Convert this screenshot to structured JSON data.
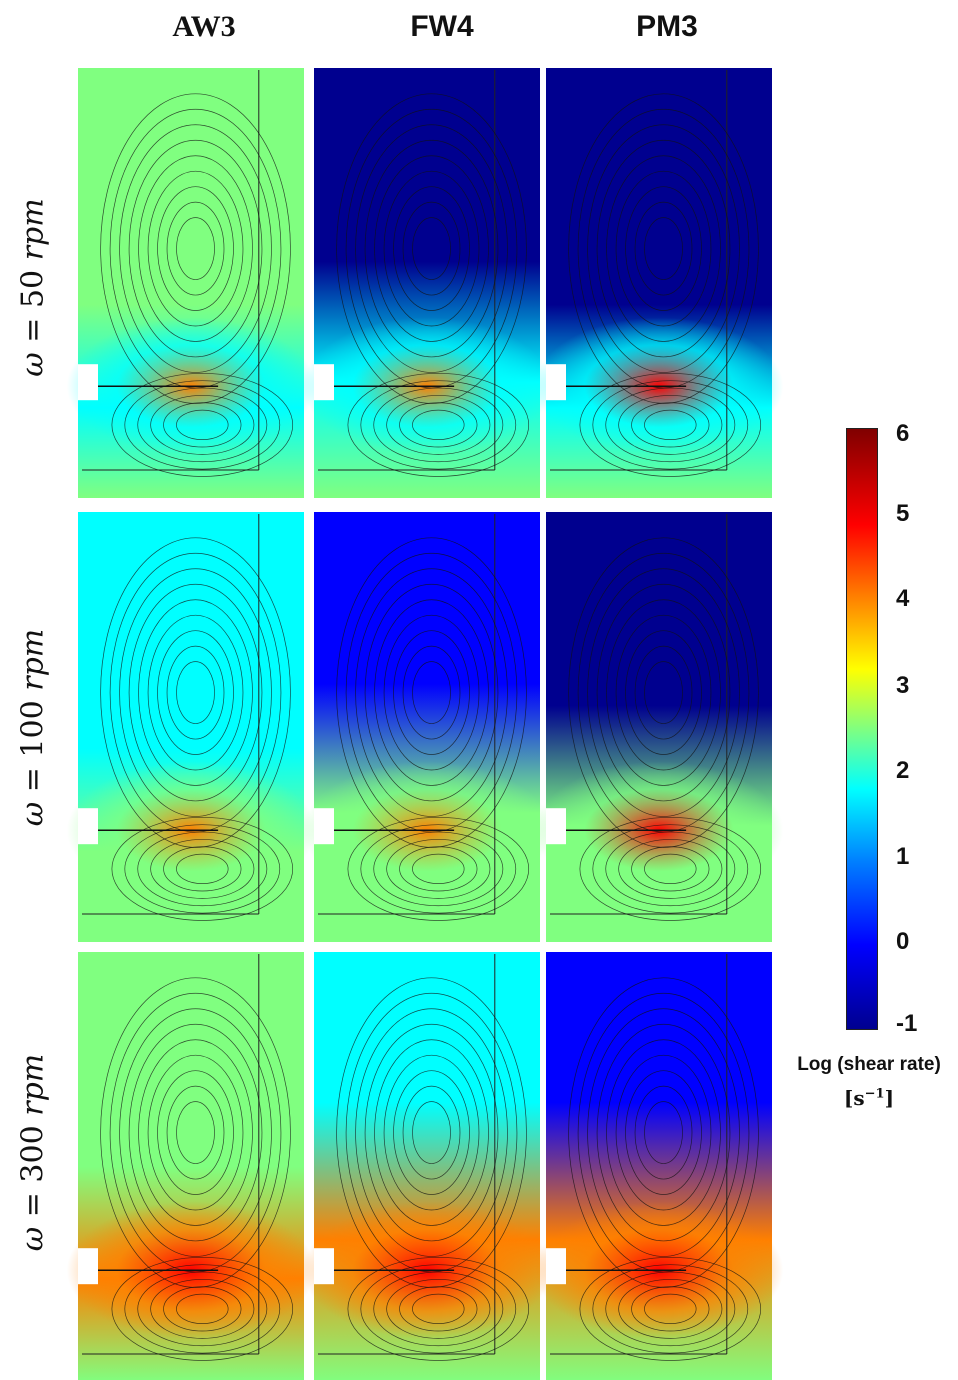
{
  "columns": [
    "AW3",
    "FW4",
    "PM3"
  ],
  "rows": [
    {
      "prefix": "ω = ",
      "value": "50",
      "unit": "rpm"
    },
    {
      "prefix": "ω = ",
      "value": "100",
      "unit": "rpm"
    },
    {
      "prefix": "ω = ",
      "value": "300",
      "unit": "rpm"
    }
  ],
  "colorbar": {
    "ticks": [
      "6",
      "5",
      "4",
      "3",
      "2",
      "1",
      "0",
      "-1"
    ],
    "title": "Log (shear rate)",
    "unit_open": "[s",
    "unit_exp": "−1",
    "unit_close": "]",
    "colormap": [
      "#00008f",
      "#0000ff",
      "#0080ff",
      "#00ffff",
      "#80ff80",
      "#ffff00",
      "#ff8000",
      "#ff0000",
      "#800000"
    ]
  }
}
